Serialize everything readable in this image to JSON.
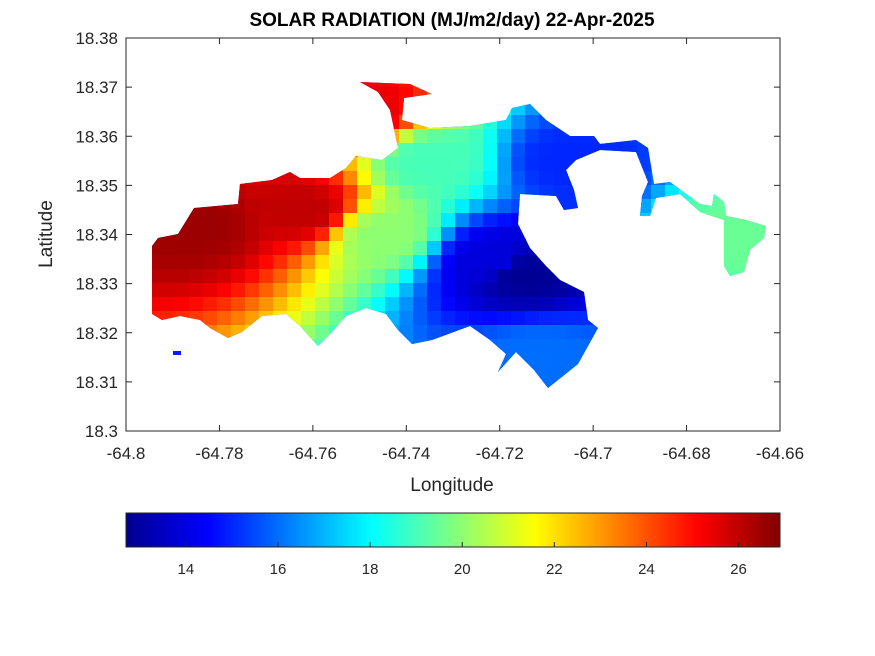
{
  "chart_data": {
    "type": "heatmap",
    "title": "SOLAR RADIATION (MJ/m2/day) 22-Apr-2025",
    "xlabel": "Longitude",
    "ylabel": "Latitude",
    "xlim": [
      -64.8,
      -64.66
    ],
    "ylim": [
      18.3,
      18.38
    ],
    "xticks": [
      "-64.8",
      "-64.78",
      "-64.76",
      "-64.74",
      "-64.72",
      "-64.7",
      "-64.68",
      "-64.66"
    ],
    "yticks": [
      "18.3",
      "18.31",
      "18.32",
      "18.33",
      "18.34",
      "18.35",
      "18.36",
      "18.37",
      "18.38"
    ],
    "colormap": "jet",
    "colorbar": {
      "location": "below",
      "range": [
        12.7,
        26.9
      ],
      "ticks": [
        "14",
        "16",
        "18",
        "20",
        "22",
        "24",
        "26"
      ]
    },
    "field": {
      "description_points": [
        {
          "lon": -64.785,
          "lat": 18.342,
          "value": 26.5
        },
        {
          "lon": -64.762,
          "lat": 18.345,
          "value": 26.0
        },
        {
          "lon": -64.75,
          "lat": 18.365,
          "value": 25.5
        },
        {
          "lon": -64.745,
          "lat": 18.34,
          "value": 20.0
        },
        {
          "lon": -64.735,
          "lat": 18.355,
          "value": 19.0
        },
        {
          "lon": -64.722,
          "lat": 18.335,
          "value": 14.0
        },
        {
          "lon": -64.715,
          "lat": 18.332,
          "value": 13.0
        },
        {
          "lon": -64.705,
          "lat": 18.355,
          "value": 15.0
        },
        {
          "lon": -64.712,
          "lat": 18.315,
          "value": 16.0
        },
        {
          "lon": -64.668,
          "lat": 18.34,
          "value": 19.5
        }
      ]
    }
  },
  "colors": {
    "axes": "#262626",
    "background": "#ffffff"
  }
}
